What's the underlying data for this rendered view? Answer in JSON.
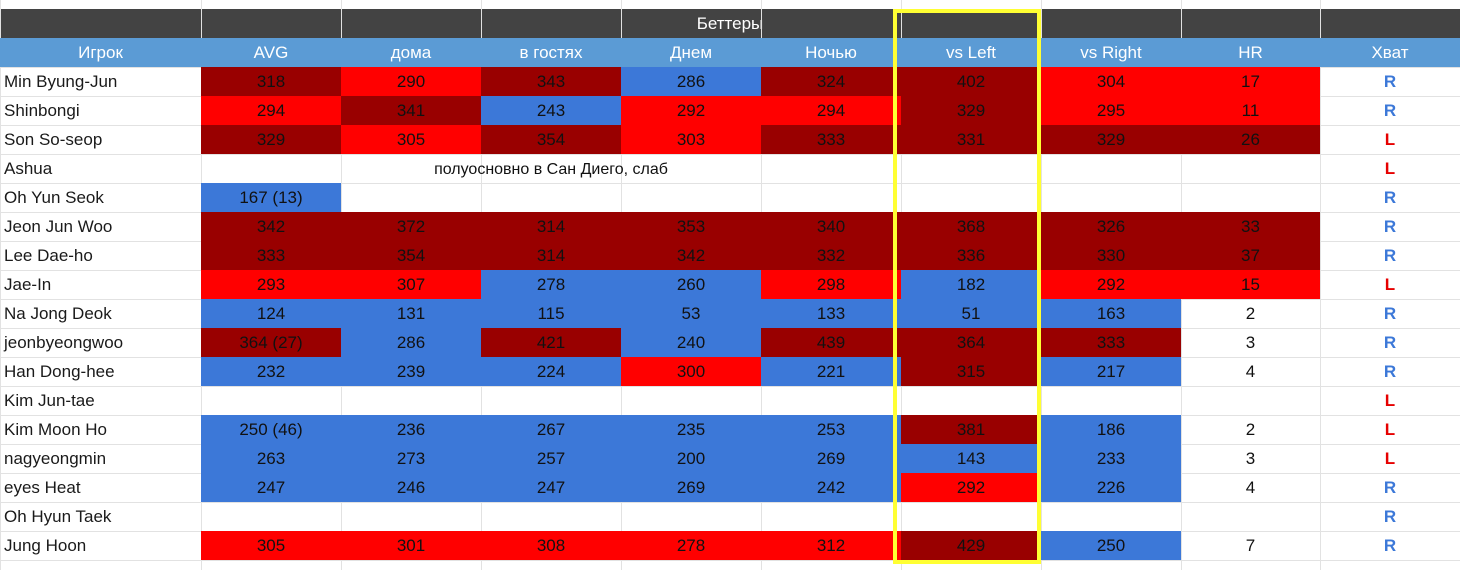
{
  "sheet": {
    "title": "Беттеры",
    "headers": [
      "Игрок",
      "AVG",
      "дома",
      "в гостях",
      "Днем",
      "Ночью",
      "vs Left",
      "vs Right",
      "HR",
      "Хват"
    ],
    "note": "полуосновно в Сан Диего, слаб",
    "colors": {
      "title_bg": "#434343",
      "header_bg": "#5b9bd5",
      "blue": "#3c78d8",
      "red": "#ff0000",
      "dark_red": "#990000",
      "highlight": "#ffff33"
    },
    "rows": [
      {
        "name": "Min Byung-Jun",
        "hand": "R",
        "cells": [
          [
            "318",
            "dred"
          ],
          [
            "290",
            "red"
          ],
          [
            "343",
            "dred"
          ],
          [
            "286",
            "blue"
          ],
          [
            "324",
            "dred"
          ],
          [
            "402",
            "dred"
          ],
          [
            "304",
            "red"
          ],
          [
            "17",
            "red"
          ]
        ]
      },
      {
        "name": "Shinbongi",
        "hand": "R",
        "cells": [
          [
            "294",
            "red"
          ],
          [
            "341",
            "dred"
          ],
          [
            "243",
            "blue"
          ],
          [
            "292",
            "red"
          ],
          [
            "294",
            "red"
          ],
          [
            "329",
            "dred"
          ],
          [
            "295",
            "red"
          ],
          [
            "11",
            "red"
          ]
        ]
      },
      {
        "name": "Son So-seop",
        "hand": "L",
        "cells": [
          [
            "329",
            "dred"
          ],
          [
            "305",
            "red"
          ],
          [
            "354",
            "dred"
          ],
          [
            "303",
            "red"
          ],
          [
            "333",
            "dred"
          ],
          [
            "331",
            "dred"
          ],
          [
            "329",
            "dred"
          ],
          [
            "26",
            "dred"
          ]
        ]
      },
      {
        "name": "Ashua",
        "hand": "L",
        "cells": [
          [
            "",
            ""
          ],
          [
            "",
            ""
          ],
          [
            "",
            ""
          ],
          [
            "",
            ""
          ],
          [
            "",
            ""
          ],
          [
            "",
            ""
          ],
          [
            "",
            ""
          ],
          [
            "",
            ""
          ]
        ]
      },
      {
        "name": "Oh Yun Seok",
        "hand": "R",
        "cells": [
          [
            "167 (13)",
            "blue"
          ],
          [
            "",
            ""
          ],
          [
            "",
            ""
          ],
          [
            "",
            ""
          ],
          [
            "",
            ""
          ],
          [
            "",
            ""
          ],
          [
            "",
            ""
          ],
          [
            "",
            ""
          ]
        ]
      },
      {
        "name": "Jeon Jun Woo",
        "hand": "R",
        "cells": [
          [
            "342",
            "dred"
          ],
          [
            "372",
            "dred"
          ],
          [
            "314",
            "dred"
          ],
          [
            "353",
            "dred"
          ],
          [
            "340",
            "dred"
          ],
          [
            "368",
            "dred"
          ],
          [
            "326",
            "dred"
          ],
          [
            "33",
            "dred"
          ]
        ]
      },
      {
        "name": "Lee Dae-ho",
        "hand": "R",
        "cells": [
          [
            "333",
            "dred"
          ],
          [
            "354",
            "dred"
          ],
          [
            "314",
            "dred"
          ],
          [
            "342",
            "dred"
          ],
          [
            "332",
            "dred"
          ],
          [
            "336",
            "dred"
          ],
          [
            "330",
            "dred"
          ],
          [
            "37",
            "dred"
          ]
        ]
      },
      {
        "name": "Jae-In",
        "hand": "L",
        "cells": [
          [
            "293",
            "red"
          ],
          [
            "307",
            "red"
          ],
          [
            "278",
            "blue"
          ],
          [
            "260",
            "blue"
          ],
          [
            "298",
            "red"
          ],
          [
            "182",
            "blue"
          ],
          [
            "292",
            "red"
          ],
          [
            "15",
            "red"
          ]
        ]
      },
      {
        "name": "Na Jong Deok",
        "hand": "R",
        "cells": [
          [
            "124",
            "blue"
          ],
          [
            "131",
            "blue"
          ],
          [
            "115",
            "blue"
          ],
          [
            "53",
            "blue"
          ],
          [
            "133",
            "blue"
          ],
          [
            "51",
            "blue"
          ],
          [
            "163",
            "blue"
          ],
          [
            "2",
            ""
          ]
        ]
      },
      {
        "name": "jeonbyeongwoo",
        "hand": "R",
        "cells": [
          [
            "364 (27)",
            "dred"
          ],
          [
            "286",
            "blue"
          ],
          [
            "421",
            "dred"
          ],
          [
            "240",
            "blue"
          ],
          [
            "439",
            "dred"
          ],
          [
            "364",
            "dred"
          ],
          [
            "333",
            "dred"
          ],
          [
            "3",
            ""
          ]
        ]
      },
      {
        "name": "Han Dong-hee",
        "hand": "R",
        "cells": [
          [
            "232",
            "blue"
          ],
          [
            "239",
            "blue"
          ],
          [
            "224",
            "blue"
          ],
          [
            "300",
            "red"
          ],
          [
            "221",
            "blue"
          ],
          [
            "315",
            "dred"
          ],
          [
            "217",
            "blue"
          ],
          [
            "4",
            ""
          ]
        ]
      },
      {
        "name": "Kim Jun-tae",
        "hand": "L",
        "cells": [
          [
            "",
            ""
          ],
          [
            "",
            ""
          ],
          [
            "",
            ""
          ],
          [
            "",
            ""
          ],
          [
            "",
            ""
          ],
          [
            "",
            ""
          ],
          [
            "",
            ""
          ],
          [
            "",
            ""
          ]
        ]
      },
      {
        "name": "Kim Moon Ho",
        "hand": "L",
        "cells": [
          [
            "250 (46)",
            "blue"
          ],
          [
            "236",
            "blue"
          ],
          [
            "267",
            "blue"
          ],
          [
            "235",
            "blue"
          ],
          [
            "253",
            "blue"
          ],
          [
            "381",
            "dred"
          ],
          [
            "186",
            "blue"
          ],
          [
            "2",
            ""
          ]
        ]
      },
      {
        "name": "nagyeongmin",
        "hand": "L",
        "cells": [
          [
            "263",
            "blue"
          ],
          [
            "273",
            "blue"
          ],
          [
            "257",
            "blue"
          ],
          [
            "200",
            "blue"
          ],
          [
            "269",
            "blue"
          ],
          [
            "143",
            "blue"
          ],
          [
            "233",
            "blue"
          ],
          [
            "3",
            ""
          ]
        ]
      },
      {
        "name": "eyes Heat",
        "hand": "R",
        "cells": [
          [
            "247",
            "blue"
          ],
          [
            "246",
            "blue"
          ],
          [
            "247",
            "blue"
          ],
          [
            "269",
            "blue"
          ],
          [
            "242",
            "blue"
          ],
          [
            "292",
            "red"
          ],
          [
            "226",
            "blue"
          ],
          [
            "4",
            ""
          ]
        ]
      },
      {
        "name": "Oh Hyun Taek",
        "hand": "R",
        "cells": [
          [
            "",
            ""
          ],
          [
            "",
            ""
          ],
          [
            "",
            ""
          ],
          [
            "",
            ""
          ],
          [
            "",
            ""
          ],
          [
            "",
            ""
          ],
          [
            "",
            ""
          ],
          [
            "",
            ""
          ]
        ]
      },
      {
        "name": "Jung Hoon",
        "hand": "R",
        "cells": [
          [
            "305",
            "red"
          ],
          [
            "301",
            "red"
          ],
          [
            "308",
            "red"
          ],
          [
            "278",
            "red"
          ],
          [
            "312",
            "red"
          ],
          [
            "429",
            "dred"
          ],
          [
            "250",
            "blue"
          ],
          [
            "7",
            ""
          ]
        ]
      }
    ]
  }
}
